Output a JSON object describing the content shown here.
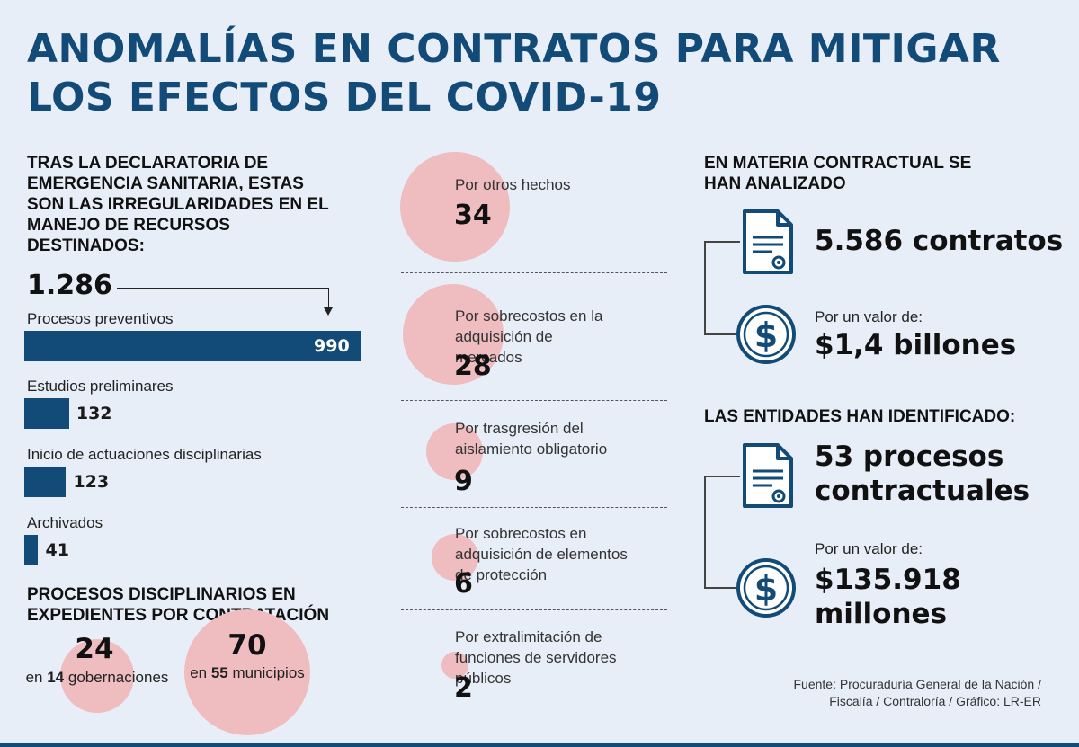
{
  "title": {
    "line1": "ANOMALÍAS  EN CONTRATOS PARA MITIGAR",
    "line2": "LOS EFECTOS DEL COVID-19"
  },
  "intro": "TRAS LA DECLARATORIA DE EMERGENCIA SANITARIA, ESTAS SON LAS IRREGULARIDADES  EN EL MANEJO DE RECURSOS DESTINADOS:",
  "total": "1.286",
  "chart_data": [
    {
      "type": "bar",
      "orientation": "horizontal",
      "categories": [
        "Procesos preventivos",
        "Estudios preliminares",
        "Inicio de actuaciones disciplinarias",
        "Archivados"
      ],
      "values": [
        990,
        132,
        123,
        41
      ],
      "value_labels": [
        "990",
        "132",
        "123",
        "41"
      ],
      "xlim": [
        0,
        990
      ],
      "color": "#124a78"
    },
    {
      "type": "bubble",
      "title": "PROCESOS DISCIPLINARIOS EN EXPEDIENTES POR CONTRATACIÓN",
      "items": [
        {
          "value": 24,
          "label": "24",
          "caption_pre": "en",
          "caption_bold": "14",
          "caption_post": "gobernaciones"
        },
        {
          "value": 70,
          "label": "70",
          "caption_pre": "en",
          "caption_bold": "55",
          "caption_post": "municipios"
        }
      ],
      "color": "#efbcbf"
    },
    {
      "type": "bubble",
      "items": [
        {
          "label": "Por otros hechos",
          "value": 34
        },
        {
          "label": "Por sobrecostos en la adquisición de mercados",
          "value": 28
        },
        {
          "label": "Por trasgresión del aislamiento obligatorio",
          "value": 9
        },
        {
          "label": "Por sobrecostos en adquisición de elementos de protección",
          "value": 6
        },
        {
          "label": "Por extralimitación de funciones de servidores públicos",
          "value": 2
        }
      ],
      "color": "#efbcbf"
    }
  ],
  "right": {
    "section1": {
      "title": "EN MATERIA CONTRACTUAL SE HAN ANALIZADO",
      "contracts": "5.586 contratos",
      "value_label": "Por un valor de:",
      "value": "$1,4 billones"
    },
    "section2": {
      "title": "LAS ENTIDADES HAN IDENTIFICADO:",
      "processes": "53 procesos contractuales",
      "value_label": "Por un valor de:",
      "value": "$135.918 millones"
    },
    "icons": [
      "document-icon",
      "dollar-icon"
    ],
    "accent": "#124a78"
  },
  "source": "Fuente: Procuraduría General de la Nación / Fiscalía / Contraloría / Gráfico: LR-ER"
}
